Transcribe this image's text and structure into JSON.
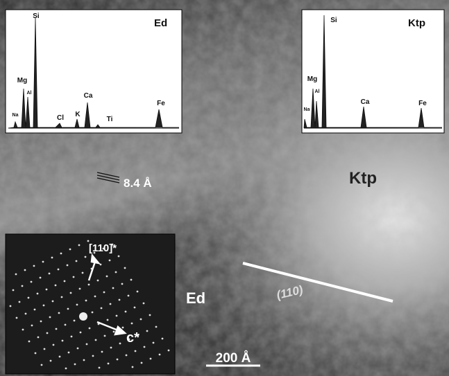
{
  "insets": [
    {
      "label": "Ed",
      "peaks": [
        "Si",
        "Mg",
        "Al",
        "Na",
        "Cl",
        "K",
        "Ca",
        "Ti",
        "Fe"
      ]
    },
    {
      "label": "Ktp",
      "peaks": [
        "Si",
        "Mg",
        "Al",
        "Na",
        "Ca",
        "Fe"
      ]
    }
  ],
  "image": {
    "fringe_label": "8.4 Å",
    "phase_labels": [
      "Ktp",
      "Ed"
    ],
    "plane_label": "(110)",
    "diffraction": {
      "direction_1": "[110]*",
      "direction_2": "c*"
    },
    "scale_bar": "200 Å"
  }
}
